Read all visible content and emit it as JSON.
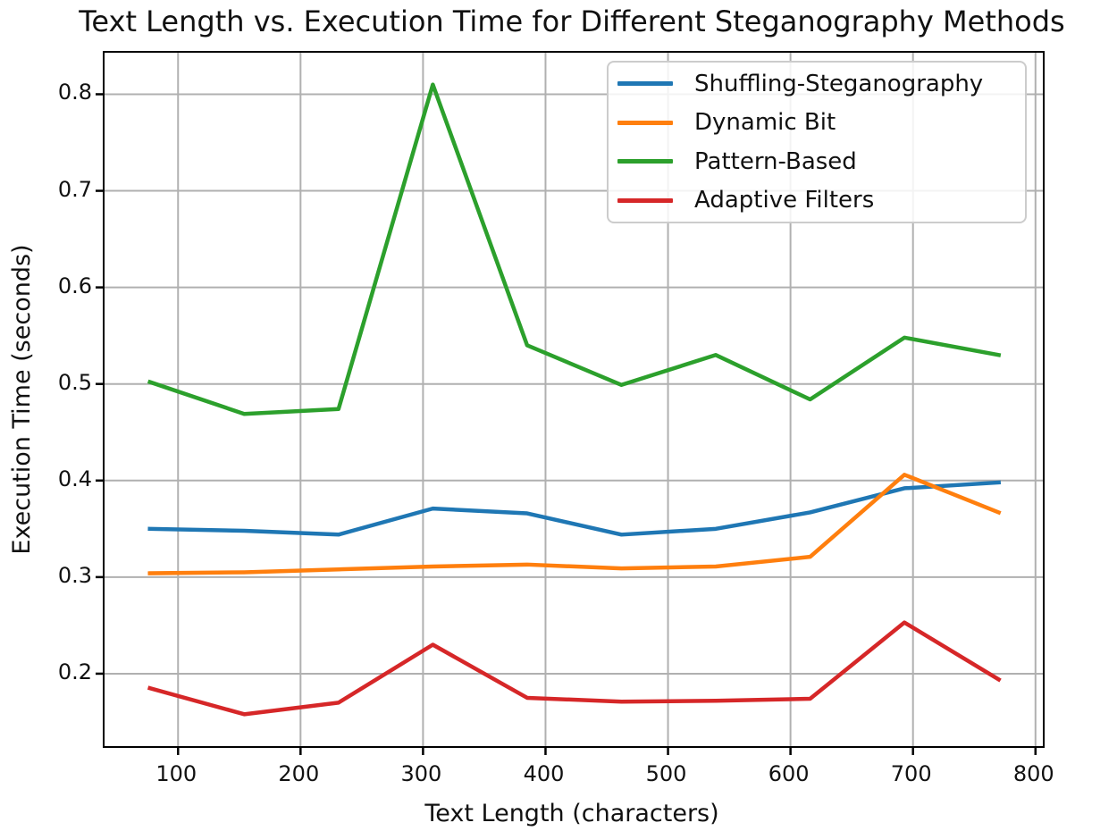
{
  "chart_data": {
    "type": "line",
    "title": "Text Length vs. Execution Time for Different Steganography Methods",
    "xlabel": "Text Length (characters)",
    "ylabel": "Execution Time (seconds)",
    "x": [
      77,
      154,
      231,
      308,
      385,
      462,
      539,
      616,
      693,
      770
    ],
    "series": [
      {
        "name": "Shuffling-Steganography",
        "color": "#1f77b4",
        "values": [
          0.35,
          0.348,
          0.344,
          0.371,
          0.366,
          0.344,
          0.35,
          0.367,
          0.392,
          0.398
        ]
      },
      {
        "name": "Dynamic Bit",
        "color": "#ff7f0e",
        "values": [
          0.304,
          0.305,
          0.308,
          0.311,
          0.313,
          0.309,
          0.311,
          0.321,
          0.406,
          0.367
        ]
      },
      {
        "name": "Pattern-Based",
        "color": "#2ca02c",
        "values": [
          0.502,
          0.469,
          0.474,
          0.81,
          0.54,
          0.499,
          0.53,
          0.484,
          0.548,
          0.53
        ]
      },
      {
        "name": "Adaptive Filters",
        "color": "#d62728",
        "values": [
          0.185,
          0.158,
          0.17,
          0.23,
          0.175,
          0.171,
          0.172,
          0.174,
          0.253,
          0.194
        ]
      }
    ],
    "xticks": [
      100,
      200,
      300,
      400,
      500,
      600,
      700,
      800
    ],
    "yticks": [
      0.2,
      0.3,
      0.4,
      0.5,
      0.6,
      0.7,
      0.8
    ],
    "xlim": [
      40,
      806
    ],
    "ylim": [
      0.125,
      0.843
    ],
    "grid": true,
    "legend_position": "upper right",
    "grid_color": "#b0b0b0",
    "tick_color": "#000000",
    "spine_color": "#000000",
    "background": "#ffffff"
  }
}
